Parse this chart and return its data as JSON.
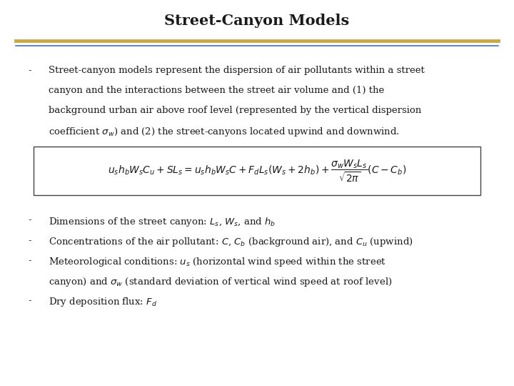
{
  "title": "Street-Canyon Models",
  "title_fontsize": 15,
  "title_color": "#1a1a1a",
  "bg_color": "#ffffff",
  "gold_line_color": "#C8A84B",
  "blue_line_color": "#4472C4",
  "text_fontsize": 9.5,
  "body_color": "#1a1a1a",
  "bullet1_lines": [
    "Street-canyon models represent the dispersion of air pollutants within a street",
    "canyon and the interactions between the street air volume and (1) the",
    "background urban air above roof level (represented by the vertical dispersion",
    "coefficient $\\sigma_w$) and (2) the street-canyons located upwind and downwind."
  ],
  "bullet2": "Dimensions of the street canyon: $L_s$, $W_s$, and $h_b$",
  "bullet3": "Concentrations of the air pollutant: $C$, $C_b$ (background air), and $C_u$ (upwind)",
  "bullet4_lines": [
    "Meteorological conditions: $u_s$ (horizontal wind speed within the street",
    "canyon) and $\\sigma_w$ (standard deviation of vertical wind speed at roof level)"
  ],
  "bullet5": "Dry deposition flux: $F_d$",
  "formula": "$u_s h_b W_s C_u + SL_s = u_s h_b W_s C + F_d L_s(W_s + 2h_b) + \\dfrac{\\sigma_w W_s L_s}{\\sqrt{2\\pi}}(C - C_b)$"
}
